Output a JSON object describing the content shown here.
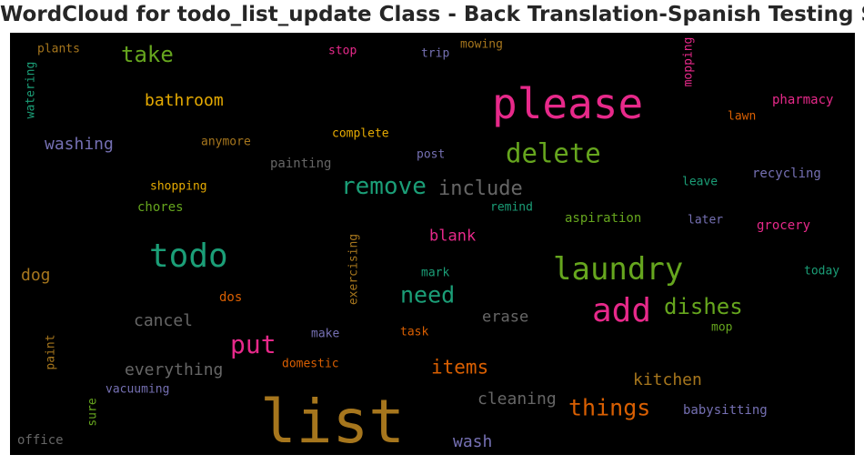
{
  "title": "WordCloud for todo_list_update Class - Back Translation-Spanish Testing Set",
  "words": [
    {
      "text": "list",
      "color": "#a6761d"
    },
    {
      "text": "please",
      "color": "#e7298a"
    },
    {
      "text": "todo",
      "color": "#1b9e77"
    },
    {
      "text": "laundry",
      "color": "#66a61e"
    },
    {
      "text": "add",
      "color": "#e7298a"
    },
    {
      "text": "delete",
      "color": "#66a61e"
    },
    {
      "text": "remove",
      "color": "#1b9e77"
    },
    {
      "text": "put",
      "color": "#e7298a"
    },
    {
      "text": "things",
      "color": "#d95f02"
    },
    {
      "text": "need",
      "color": "#1b9e77"
    },
    {
      "text": "dishes",
      "color": "#66a61e"
    },
    {
      "text": "include",
      "color": "#666666"
    },
    {
      "text": "take",
      "color": "#66a61e"
    },
    {
      "text": "items",
      "color": "#d95f02"
    },
    {
      "text": "bathroom",
      "color": "#e6ab02"
    },
    {
      "text": "washing",
      "color": "#7570b3"
    },
    {
      "text": "everything",
      "color": "#666666"
    },
    {
      "text": "cleaning",
      "color": "#666666"
    },
    {
      "text": "kitchen",
      "color": "#a6761d"
    },
    {
      "text": "cancel",
      "color": "#666666"
    },
    {
      "text": "erase",
      "color": "#666666"
    },
    {
      "text": "wash",
      "color": "#7570b3"
    },
    {
      "text": "blank",
      "color": "#e7298a"
    },
    {
      "text": "dog",
      "color": "#a6761d"
    },
    {
      "text": "babysitting",
      "color": "#7570b3"
    },
    {
      "text": "pharmacy",
      "color": "#e7298a"
    },
    {
      "text": "recycling",
      "color": "#7570b3"
    },
    {
      "text": "grocery",
      "color": "#e7298a"
    },
    {
      "text": "aspiration",
      "color": "#66a61e"
    },
    {
      "text": "complete",
      "color": "#e6ab02"
    },
    {
      "text": "anymore",
      "color": "#a6761d"
    },
    {
      "text": "painting",
      "color": "#666666"
    },
    {
      "text": "shopping",
      "color": "#e6ab02"
    },
    {
      "text": "chores",
      "color": "#66a61e"
    },
    {
      "text": "remind",
      "color": "#1b9e77"
    },
    {
      "text": "mowing",
      "color": "#a6761d"
    },
    {
      "text": "plants",
      "color": "#a6761d"
    },
    {
      "text": "stop",
      "color": "#e7298a"
    },
    {
      "text": "trip",
      "color": "#7570b3"
    },
    {
      "text": "lawn",
      "color": "#d95f02"
    },
    {
      "text": "post",
      "color": "#7570b3"
    },
    {
      "text": "leave",
      "color": "#1b9e77"
    },
    {
      "text": "later",
      "color": "#7570b3"
    },
    {
      "text": "today",
      "color": "#1b9e77"
    },
    {
      "text": "mark",
      "color": "#1b9e77"
    },
    {
      "text": "dos",
      "color": "#d95f02"
    },
    {
      "text": "make",
      "color": "#7570b3"
    },
    {
      "text": "task",
      "color": "#d95f02"
    },
    {
      "text": "mop",
      "color": "#66a61e"
    },
    {
      "text": "domestic",
      "color": "#d95f02"
    },
    {
      "text": "vacuuming",
      "color": "#7570b3"
    },
    {
      "text": "office",
      "color": "#666666"
    },
    {
      "text": "watering",
      "color": "#1b9e77"
    },
    {
      "text": "mopping",
      "color": "#e7298a"
    },
    {
      "text": "exercising",
      "color": "#a6761d"
    },
    {
      "text": "paint",
      "color": "#a6761d"
    },
    {
      "text": "sure",
      "color": "#66a61e"
    }
  ]
}
